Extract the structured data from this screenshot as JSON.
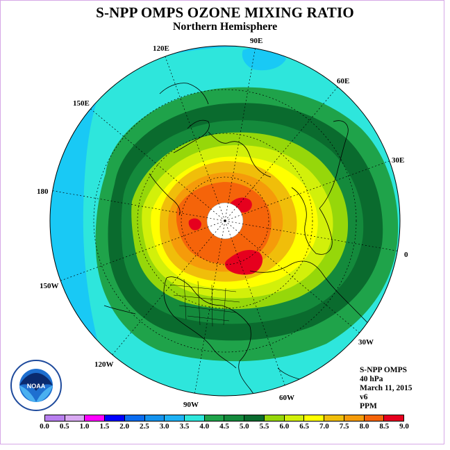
{
  "title": "S-NPP OMPS OZONE MIXING RATIO",
  "subtitle": "Northern Hemisphere",
  "longitude_labels": {
    "l90E": "90E",
    "l60E": "60E",
    "l30E": "30E",
    "l0": "0",
    "l30W": "30W",
    "l60W": "60W",
    "l90W": "90W",
    "l120W": "120W",
    "l150W": "150W",
    "l180": "180",
    "l150E": "150E",
    "l120E": "120E"
  },
  "info": {
    "instrument": "S-NPP OMPS",
    "level": "40 hPa",
    "date": "March 11, 2015",
    "version": "v6",
    "units": "PPM"
  },
  "colorbar": {
    "colors": [
      "#b87fef",
      "#d9a9f2",
      "#ff00ff",
      "#0000ff",
      "#0a6cf0",
      "#1493ee",
      "#1eb2f5",
      "#2ee6dc",
      "#1fa34a",
      "#148a3c",
      "#0a6b2e",
      "#96d70a",
      "#d2f00a",
      "#ffff00",
      "#f0be0a",
      "#f59b0a",
      "#f5640a",
      "#e6001e",
      "#8c5a46"
    ],
    "ticks": [
      "0.0",
      "0.5",
      "1.0",
      "1.5",
      "2.0",
      "2.5",
      "3.0",
      "3.5",
      "4.0",
      "4.5",
      "5.0",
      "5.5",
      "6.0",
      "6.5",
      "7.0",
      "7.5",
      "8.0",
      "8.5",
      "9.0"
    ]
  },
  "logo_text": "NOAA",
  "colors": {
    "outer": "#19c9f5",
    "cyan": "#2ee6dc",
    "green_light": "#1fa34a",
    "green_mid": "#148a3c",
    "green_dark": "#0a6b2e",
    "lime": "#96d70a",
    "yellow_green": "#d2f00a",
    "yellow": "#ffff00",
    "orange": "#f59b0a",
    "red_orange": "#f5640a",
    "red": "#e6001e",
    "pole": "#ffffff"
  }
}
